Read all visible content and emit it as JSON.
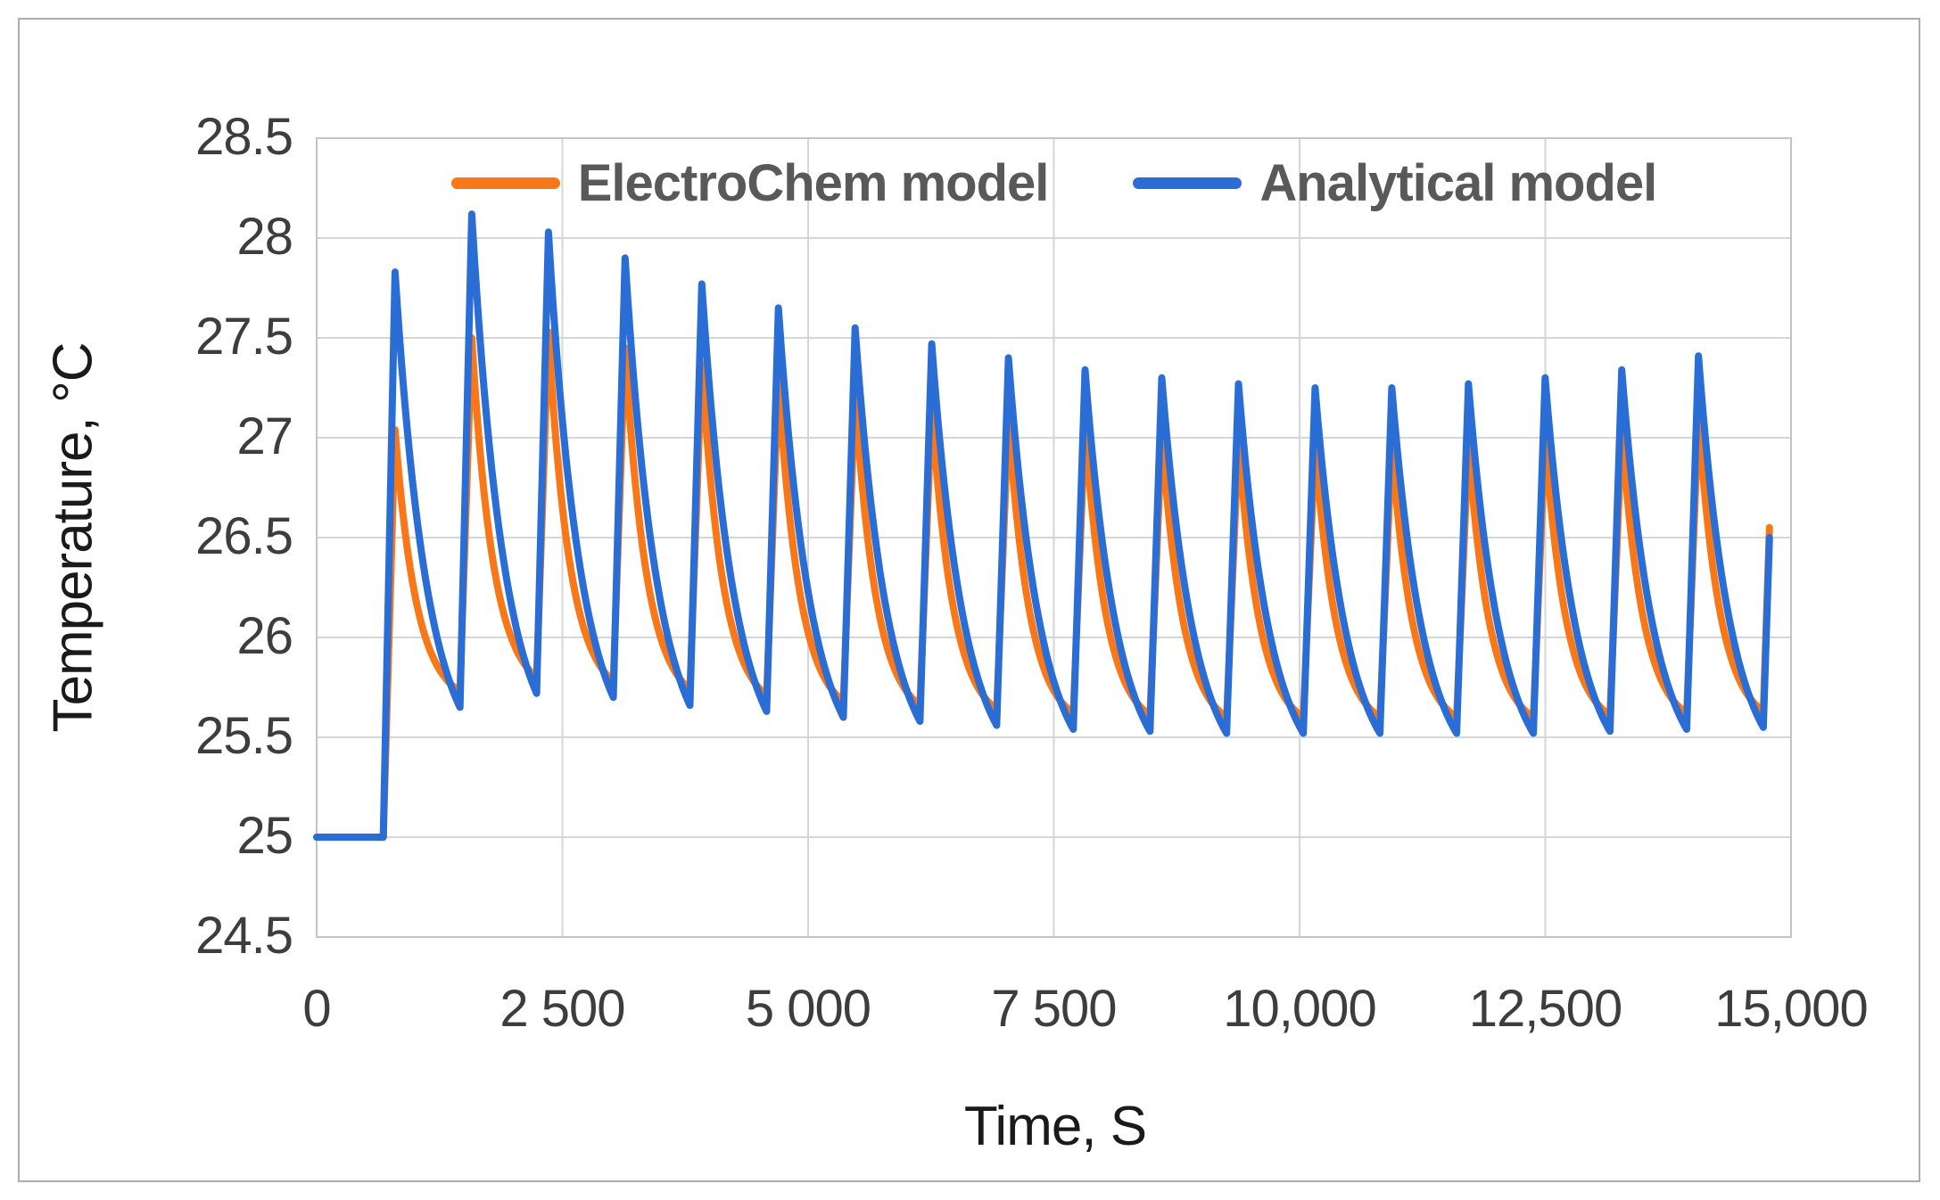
{
  "chart_data": {
    "type": "line",
    "title": "",
    "xlabel": "Time, S",
    "ylabel": "Temperature, °C",
    "xlim": [
      0,
      15000
    ],
    "ylim": [
      24.5,
      28.5
    ],
    "grid": true,
    "legend_position": "top-center-inside",
    "x_ticks": [
      {
        "v": 0,
        "label": "0"
      },
      {
        "v": 2500,
        "label": "2 500"
      },
      {
        "v": 5000,
        "label": "5 000"
      },
      {
        "v": 7500,
        "label": "7 500"
      },
      {
        "v": 10000,
        "label": "10,000"
      },
      {
        "v": 12500,
        "label": "12,500"
      },
      {
        "v": 15000,
        "label": "15,000"
      }
    ],
    "y_ticks": [
      {
        "v": 28.5,
        "label": "28.5"
      },
      {
        "v": 28,
        "label": "28"
      },
      {
        "v": 27.5,
        "label": "27.5"
      },
      {
        "v": 27,
        "label": "27"
      },
      {
        "v": 26.5,
        "label": "26.5"
      },
      {
        "v": 26,
        "label": "26"
      },
      {
        "v": 25.5,
        "label": "25.5"
      },
      {
        "v": 25,
        "label": "25"
      },
      {
        "v": 24.5,
        "label": "24.5"
      }
    ],
    "pattern": {
      "description": "Flat start then 18 periodic heat/cool sawtooth cycles, truncated mid-rise at end",
      "initial_value_c": 25.0,
      "first_rise_start_s": 678,
      "rise_duration_s": 120,
      "period_s": 780,
      "cycles": 18,
      "end_time_s": 14780
    },
    "series": [
      {
        "name": "ElectroChem model",
        "color": "#F87719",
        "decay_shape": 3.0,
        "peaks_c": [
          27.04,
          27.5,
          27.53,
          27.45,
          27.37,
          27.29,
          27.22,
          27.16,
          27.1,
          27.06,
          27.02,
          26.99,
          26.97,
          26.96,
          26.97,
          27.0,
          27.04,
          27.11
        ],
        "troughs_c": [
          25.73,
          25.8,
          25.78,
          25.74,
          25.71,
          25.68,
          25.66,
          25.64,
          25.62,
          25.61,
          25.6,
          25.6,
          25.6,
          25.6,
          25.6,
          25.61,
          25.62,
          25.63
        ],
        "end_value_c": 26.55
      },
      {
        "name": "Analytical model",
        "color": "#2A6DD5",
        "decay_shape": 2.0,
        "peaks_c": [
          27.83,
          28.12,
          28.03,
          27.9,
          27.77,
          27.65,
          27.55,
          27.47,
          27.4,
          27.34,
          27.3,
          27.27,
          27.25,
          27.25,
          27.27,
          27.3,
          27.34,
          27.41
        ],
        "troughs_c": [
          25.65,
          25.72,
          25.7,
          25.66,
          25.63,
          25.6,
          25.58,
          25.56,
          25.54,
          25.53,
          25.52,
          25.52,
          25.52,
          25.52,
          25.52,
          25.53,
          25.54,
          25.55
        ],
        "end_value_c": 26.5
      }
    ],
    "colors": {
      "gridline": "#D6D6D6",
      "plot_border": "#C4C4C4",
      "tick_text": "#3D3D3D",
      "axis_title_text": "#1A1A1A",
      "legend_text": "#595959"
    }
  }
}
